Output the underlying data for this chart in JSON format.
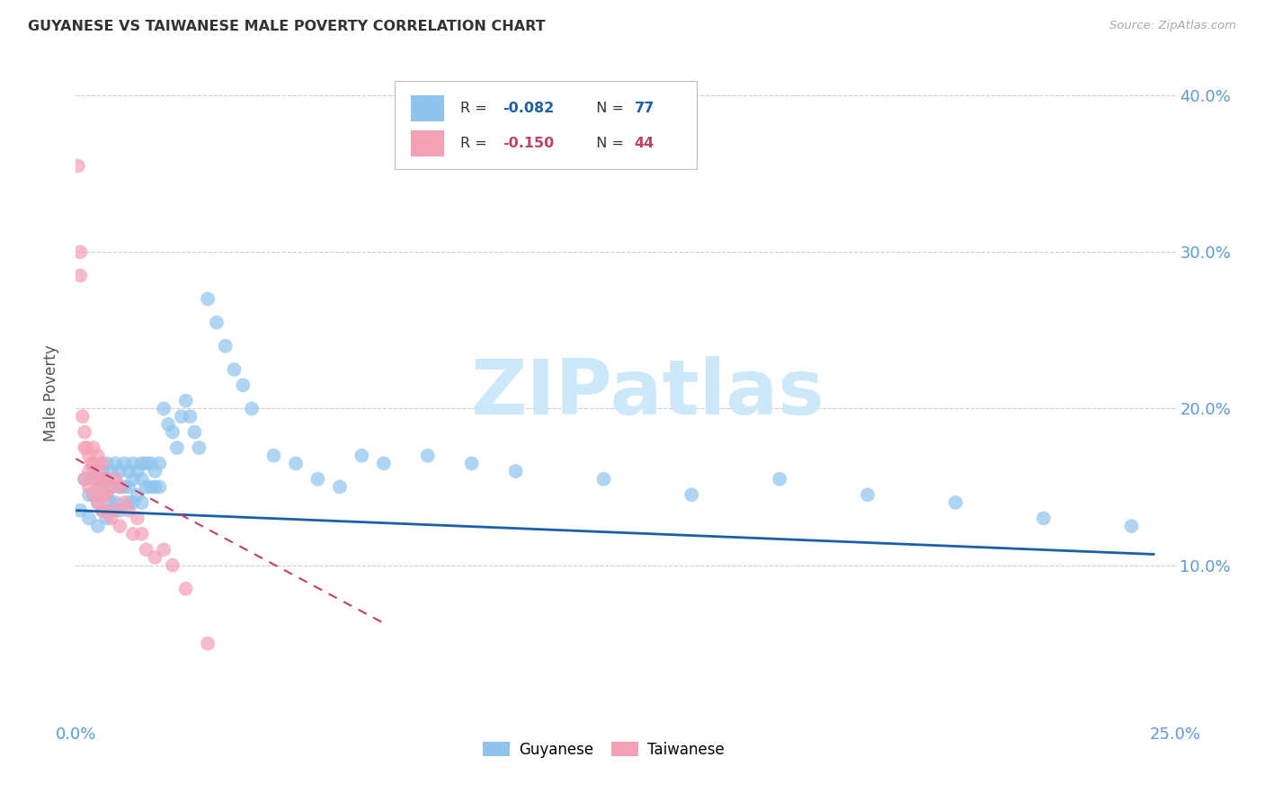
{
  "title": "GUYANESE VS TAIWANESE MALE POVERTY CORRELATION CHART",
  "source": "Source: ZipAtlas.com",
  "ylabel": "Male Poverty",
  "xlim": [
    0.0,
    0.25
  ],
  "ylim": [
    0.0,
    0.42
  ],
  "guyanese_color": "#8ec4ed",
  "taiwanese_color": "#f4a0b5",
  "trend_guyanese_color": "#1a5fa8",
  "trend_taiwanese_color": "#c0406a",
  "legend_r_guyanese": "-0.082",
  "legend_n_guyanese": "77",
  "legend_r_taiwanese": "-0.150",
  "legend_n_taiwanese": "44",
  "watermark": "ZIPatlas",
  "watermark_color": "#cde8f8",
  "background_color": "#ffffff",
  "grid_color": "#cccccc",
  "tick_color": "#5b9bd5",
  "guyanese_x": [
    0.001,
    0.002,
    0.003,
    0.003,
    0.004,
    0.004,
    0.005,
    0.005,
    0.005,
    0.006,
    0.006,
    0.006,
    0.007,
    0.007,
    0.007,
    0.007,
    0.008,
    0.008,
    0.008,
    0.009,
    0.009,
    0.009,
    0.01,
    0.01,
    0.01,
    0.011,
    0.011,
    0.012,
    0.012,
    0.012,
    0.013,
    0.013,
    0.013,
    0.014,
    0.014,
    0.015,
    0.015,
    0.015,
    0.016,
    0.016,
    0.017,
    0.017,
    0.018,
    0.018,
    0.019,
    0.019,
    0.02,
    0.021,
    0.022,
    0.023,
    0.024,
    0.025,
    0.026,
    0.027,
    0.028,
    0.03,
    0.032,
    0.034,
    0.036,
    0.038,
    0.04,
    0.045,
    0.05,
    0.055,
    0.06,
    0.065,
    0.07,
    0.08,
    0.09,
    0.1,
    0.12,
    0.14,
    0.16,
    0.18,
    0.2,
    0.22,
    0.24
  ],
  "guyanese_y": [
    0.135,
    0.155,
    0.145,
    0.13,
    0.16,
    0.145,
    0.155,
    0.14,
    0.125,
    0.16,
    0.15,
    0.135,
    0.165,
    0.155,
    0.145,
    0.13,
    0.16,
    0.15,
    0.14,
    0.165,
    0.155,
    0.14,
    0.16,
    0.15,
    0.135,
    0.165,
    0.15,
    0.16,
    0.15,
    0.14,
    0.165,
    0.155,
    0.14,
    0.16,
    0.145,
    0.165,
    0.155,
    0.14,
    0.165,
    0.15,
    0.165,
    0.15,
    0.16,
    0.15,
    0.165,
    0.15,
    0.2,
    0.19,
    0.185,
    0.175,
    0.195,
    0.205,
    0.195,
    0.185,
    0.175,
    0.27,
    0.255,
    0.24,
    0.225,
    0.215,
    0.2,
    0.17,
    0.165,
    0.155,
    0.15,
    0.17,
    0.165,
    0.17,
    0.165,
    0.16,
    0.155,
    0.145,
    0.155,
    0.145,
    0.14,
    0.13,
    0.125
  ],
  "taiwanese_x": [
    0.0005,
    0.001,
    0.001,
    0.0015,
    0.002,
    0.002,
    0.002,
    0.0025,
    0.003,
    0.003,
    0.003,
    0.0035,
    0.004,
    0.004,
    0.004,
    0.004,
    0.005,
    0.005,
    0.005,
    0.005,
    0.006,
    0.006,
    0.006,
    0.006,
    0.007,
    0.007,
    0.007,
    0.008,
    0.008,
    0.009,
    0.009,
    0.01,
    0.01,
    0.011,
    0.012,
    0.013,
    0.014,
    0.015,
    0.016,
    0.018,
    0.02,
    0.022,
    0.025,
    0.03
  ],
  "taiwanese_y": [
    0.355,
    0.3,
    0.285,
    0.195,
    0.185,
    0.175,
    0.155,
    0.175,
    0.17,
    0.16,
    0.15,
    0.165,
    0.175,
    0.165,
    0.155,
    0.145,
    0.17,
    0.16,
    0.15,
    0.14,
    0.165,
    0.155,
    0.145,
    0.135,
    0.155,
    0.145,
    0.135,
    0.15,
    0.13,
    0.155,
    0.135,
    0.15,
    0.125,
    0.14,
    0.135,
    0.12,
    0.13,
    0.12,
    0.11,
    0.105,
    0.11,
    0.1,
    0.085,
    0.05
  ]
}
